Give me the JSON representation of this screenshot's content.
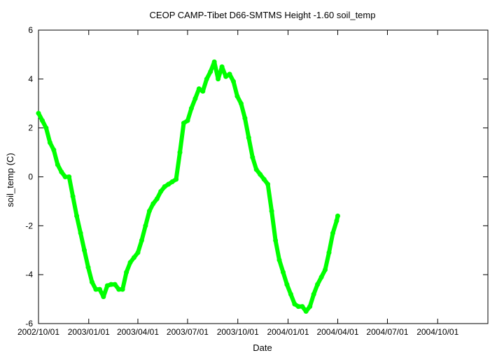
{
  "chart_data": {
    "type": "line",
    "title": "CEOP CAMP-Tibet D66-SMTMS Height -1.60 soil_temp",
    "xlabel": "Date",
    "ylabel": "soil_temp (C)",
    "x_ticks": [
      "2002/10/01",
      "2003/01/01",
      "2003/04/01",
      "2003/07/01",
      "2003/10/01",
      "2004/01/01",
      "2004/04/01",
      "2004/07/01",
      "2004/10/01"
    ],
    "xlim": [
      "2002/10/01",
      "2005/01/01"
    ],
    "ylim": [
      -6,
      6
    ],
    "y_ticks": [
      -6,
      -4,
      -2,
      0,
      2,
      4,
      6
    ],
    "grid": false,
    "line_color": "#00ff00",
    "series": [
      {
        "x": [
          "2002/10/01",
          "2002/10/08",
          "2002/10/15",
          "2002/10/22",
          "2002/10/29",
          "2002/11/05",
          "2002/11/12",
          "2002/11/19",
          "2002/11/26",
          "2002/12/03",
          "2002/12/10",
          "2002/12/17",
          "2002/12/24",
          "2002/12/31",
          "2003/01/07",
          "2003/01/14",
          "2003/01/21",
          "2003/01/28",
          "2003/02/04",
          "2003/02/11",
          "2003/02/18",
          "2003/02/25",
          "2003/03/04",
          "2003/03/11",
          "2003/03/18",
          "2003/03/25",
          "2003/04/01",
          "2003/04/08",
          "2003/04/15",
          "2003/04/22",
          "2003/04/29",
          "2003/05/06",
          "2003/05/13",
          "2003/05/20",
          "2003/05/27",
          "2003/06/03",
          "2003/06/10",
          "2003/06/17",
          "2003/06/24",
          "2003/07/01",
          "2003/07/08",
          "2003/07/15",
          "2003/07/22",
          "2003/07/29",
          "2003/08/05",
          "2003/08/12",
          "2003/08/19",
          "2003/08/26",
          "2003/09/02",
          "2003/09/09",
          "2003/09/16",
          "2003/09/23",
          "2003/09/30",
          "2003/10/07",
          "2003/10/14",
          "2003/10/21",
          "2003/10/28",
          "2003/11/04",
          "2003/11/11",
          "2003/11/18",
          "2003/11/25",
          "2003/12/02",
          "2003/12/09",
          "2003/12/16",
          "2003/12/23",
          "2003/12/30",
          "2004/01/06",
          "2004/01/13",
          "2004/01/20",
          "2004/01/27",
          "2004/02/03",
          "2004/02/10",
          "2004/02/17",
          "2004/02/24",
          "2004/03/02",
          "2004/03/09",
          "2004/03/16",
          "2004/03/23",
          "2004/03/30",
          "2004/04/01"
        ],
        "values": [
          2.6,
          2.3,
          2.0,
          1.4,
          1.1,
          0.5,
          0.2,
          0.0,
          0.0,
          -0.8,
          -1.6,
          -2.3,
          -3.0,
          -3.7,
          -4.3,
          -4.6,
          -4.6,
          -4.9,
          -4.45,
          -4.4,
          -4.4,
          -4.6,
          -4.6,
          -3.9,
          -3.5,
          -3.3,
          -3.1,
          -2.6,
          -2.0,
          -1.4,
          -1.1,
          -0.9,
          -0.6,
          -0.4,
          -0.3,
          -0.2,
          -0.1,
          1.0,
          2.2,
          2.3,
          2.8,
          3.2,
          3.6,
          3.5,
          4.0,
          4.3,
          4.7,
          4.0,
          4.5,
          4.1,
          4.2,
          3.9,
          3.3,
          3.0,
          2.4,
          1.6,
          0.8,
          0.3,
          0.1,
          -0.1,
          -0.3,
          -1.4,
          -2.6,
          -3.4,
          -3.9,
          -4.4,
          -4.8,
          -5.2,
          -5.3,
          -5.3,
          -5.5,
          -5.3,
          -4.8,
          -4.4,
          -4.1,
          -3.8,
          -3.1,
          -2.3,
          -1.8,
          -1.6
        ]
      }
    ]
  }
}
